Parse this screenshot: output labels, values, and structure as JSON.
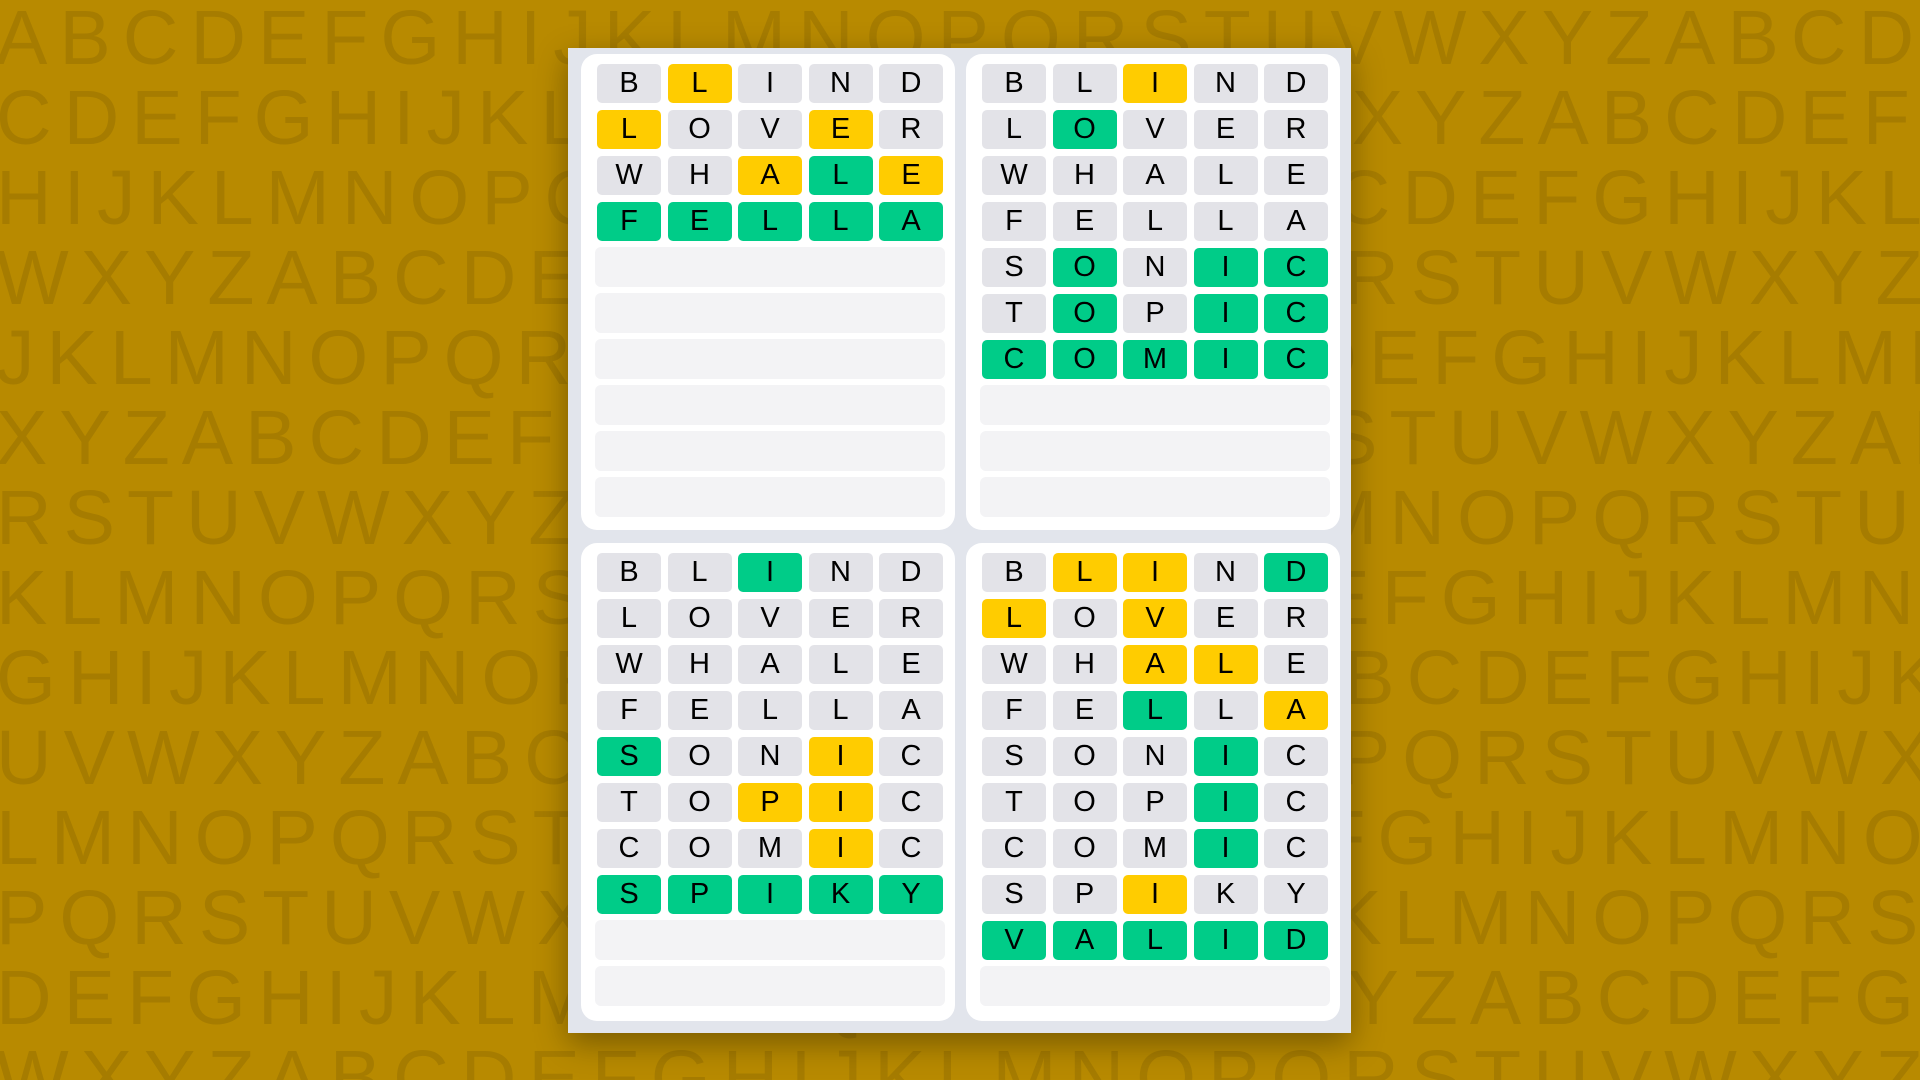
{
  "background_pattern": [
    "ABCDEFGHIJKLMNOPQRSTUVWXYZABCDEF",
    "CDEFGHIJKLMNOPQRSTUVWXYZABCDEFGH",
    "HIJKLMNOPQRSTUVWXYZABCDEFGHIJKLM",
    "WXYZABCDEFGHIJKLMNOPQRSTUVWXYZAB",
    "JKLMNOPQRSTUVWXYZABCDEFGHIJKLMNO",
    "XYZABCDEFGHIJKLMNOPQRSTUVWXYZABC",
    "RSTUVWXYZABCDEFGHIJKLMNOPQRSTUVW",
    "KLMNOPQRSTUVWXYZABCDEFGHIJKLMNOP",
    "GHIJKLMNOPQRSTUVWXYZABCDEFGHIJKL",
    "UVWXYZABCDEFGHIJKLMNOPQRSTUVWXYZ",
    "LMNOPQRSTUVWXYZABCDEFGHIJKLMNOPQ",
    "PQRSTUVWXYZABCDEFGHIJKLMNOPQRSTU",
    "DEFGHIJKLMNOPQRSTUVWXYZABCDEFGHI",
    "WXYZABCDEFGHIJKLMNOPQRSTUVWXYZAB"
  ],
  "colors": {
    "background": "#b88a00",
    "absent": "#e3e3e8",
    "present": "#ffcc00",
    "correct": "#00cc88",
    "empty": "#f3f3f5"
  },
  "state_legend": {
    "x": "absent",
    "y": "present",
    "c": "correct"
  },
  "total_rows": 10,
  "boards": [
    {
      "rows": [
        {
          "letters": [
            "B",
            "L",
            "I",
            "N",
            "D"
          ],
          "states": "xyxxx"
        },
        {
          "letters": [
            "L",
            "O",
            "V",
            "E",
            "R"
          ],
          "states": "yxxyx"
        },
        {
          "letters": [
            "W",
            "H",
            "A",
            "L",
            "E"
          ],
          "states": "xxycy"
        },
        {
          "letters": [
            "F",
            "E",
            "L",
            "L",
            "A"
          ],
          "states": "ccccc"
        }
      ]
    },
    {
      "rows": [
        {
          "letters": [
            "B",
            "L",
            "I",
            "N",
            "D"
          ],
          "states": "xxyxx"
        },
        {
          "letters": [
            "L",
            "O",
            "V",
            "E",
            "R"
          ],
          "states": "xcxxx"
        },
        {
          "letters": [
            "W",
            "H",
            "A",
            "L",
            "E"
          ],
          "states": "xxxxx"
        },
        {
          "letters": [
            "F",
            "E",
            "L",
            "L",
            "A"
          ],
          "states": "xxxxx"
        },
        {
          "letters": [
            "S",
            "O",
            "N",
            "I",
            "C"
          ],
          "states": "xcxcc"
        },
        {
          "letters": [
            "T",
            "O",
            "P",
            "I",
            "C"
          ],
          "states": "xcxcc"
        },
        {
          "letters": [
            "C",
            "O",
            "M",
            "I",
            "C"
          ],
          "states": "ccccc"
        }
      ]
    },
    {
      "rows": [
        {
          "letters": [
            "B",
            "L",
            "I",
            "N",
            "D"
          ],
          "states": "xxcxx"
        },
        {
          "letters": [
            "L",
            "O",
            "V",
            "E",
            "R"
          ],
          "states": "xxxxx"
        },
        {
          "letters": [
            "W",
            "H",
            "A",
            "L",
            "E"
          ],
          "states": "xxxxx"
        },
        {
          "letters": [
            "F",
            "E",
            "L",
            "L",
            "A"
          ],
          "states": "xxxxx"
        },
        {
          "letters": [
            "S",
            "O",
            "N",
            "I",
            "C"
          ],
          "states": "cxxyx"
        },
        {
          "letters": [
            "T",
            "O",
            "P",
            "I",
            "C"
          ],
          "states": "xxyyx"
        },
        {
          "letters": [
            "C",
            "O",
            "M",
            "I",
            "C"
          ],
          "states": "xxxyx"
        },
        {
          "letters": [
            "S",
            "P",
            "I",
            "K",
            "Y"
          ],
          "states": "ccccc"
        }
      ]
    },
    {
      "rows": [
        {
          "letters": [
            "B",
            "L",
            "I",
            "N",
            "D"
          ],
          "states": "xyyxc"
        },
        {
          "letters": [
            "L",
            "O",
            "V",
            "E",
            "R"
          ],
          "states": "yxyxx"
        },
        {
          "letters": [
            "W",
            "H",
            "A",
            "L",
            "E"
          ],
          "states": "xxyyx"
        },
        {
          "letters": [
            "F",
            "E",
            "L",
            "L",
            "A"
          ],
          "states": "xxcxy"
        },
        {
          "letters": [
            "S",
            "O",
            "N",
            "I",
            "C"
          ],
          "states": "xxxcx"
        },
        {
          "letters": [
            "T",
            "O",
            "P",
            "I",
            "C"
          ],
          "states": "xxxcx"
        },
        {
          "letters": [
            "C",
            "O",
            "M",
            "I",
            "C"
          ],
          "states": "xxxcx"
        },
        {
          "letters": [
            "S",
            "P",
            "I",
            "K",
            "Y"
          ],
          "states": "xxyxx"
        },
        {
          "letters": [
            "V",
            "A",
            "L",
            "I",
            "D"
          ],
          "states": "ccccc"
        }
      ]
    }
  ]
}
